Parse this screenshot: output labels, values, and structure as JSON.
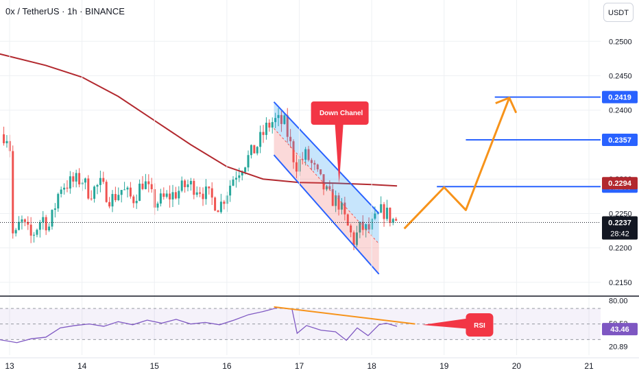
{
  "header": {
    "title": "0x / TetherUS · 1h · BINANCE",
    "currency": "USDT"
  },
  "chart_data": [
    {
      "type": "candlestick",
      "title": "0x / TetherUS · 1h · BINANCE",
      "ylim": [
        0.213,
        0.256
      ],
      "xlim": [
        13,
        21
      ],
      "x_ticks": [
        "13",
        "14",
        "15",
        "16",
        "17",
        "18",
        "19",
        "20",
        "21"
      ],
      "y_ticks": [
        "0.2500",
        "0.2450",
        "0.2400",
        "0.2300",
        "0.2250",
        "0.2200",
        "0.2150"
      ],
      "grid": true,
      "ohlc_path": [
        [
          12.95,
          0.2365
        ],
        [
          13.0,
          0.2355
        ],
        [
          13.05,
          0.2205
        ],
        [
          13.15,
          0.224
        ],
        [
          13.3,
          0.2215
        ],
        [
          13.45,
          0.2245
        ],
        [
          13.55,
          0.223
        ],
        [
          13.7,
          0.229
        ],
        [
          13.85,
          0.2295
        ],
        [
          14.0,
          0.23
        ],
        [
          14.1,
          0.228
        ],
        [
          14.25,
          0.2292
        ],
        [
          14.4,
          0.227
        ],
        [
          14.55,
          0.2285
        ],
        [
          14.7,
          0.227
        ],
        [
          14.85,
          0.2298
        ],
        [
          15.0,
          0.2265
        ],
        [
          15.15,
          0.2272
        ],
        [
          15.3,
          0.228
        ],
        [
          15.45,
          0.2292
        ],
        [
          15.6,
          0.2288
        ],
        [
          15.75,
          0.2275
        ],
        [
          15.9,
          0.226
        ],
        [
          16.0,
          0.2282
        ],
        [
          16.1,
          0.2305
        ],
        [
          16.25,
          0.2325
        ],
        [
          16.4,
          0.2345
        ],
        [
          16.55,
          0.2375
        ],
        [
          16.65,
          0.2385
        ],
        [
          16.8,
          0.238
        ],
        [
          16.95,
          0.232
        ],
        [
          17.1,
          0.2335
        ],
        [
          17.25,
          0.2305
        ],
        [
          17.4,
          0.2275
        ],
        [
          17.55,
          0.2265
        ],
        [
          17.65,
          0.2235
        ],
        [
          17.75,
          0.221
        ],
        [
          17.85,
          0.223
        ],
        [
          17.95,
          0.2225
        ],
        [
          18.05,
          0.224
        ],
        [
          18.15,
          0.2255
        ],
        [
          18.3,
          0.224
        ]
      ],
      "moving_average": {
        "color": "#b2282e",
        "points": [
          [
            12.85,
            0.2482
          ],
          [
            13.5,
            0.2465
          ],
          [
            14.0,
            0.2448
          ],
          [
            14.5,
            0.242
          ],
          [
            15.0,
            0.2385
          ],
          [
            15.5,
            0.235
          ],
          [
            16.0,
            0.2318
          ],
          [
            16.5,
            0.23
          ],
          [
            17.0,
            0.2295
          ],
          [
            17.5,
            0.2294
          ],
          [
            18.0,
            0.2292
          ],
          [
            18.35,
            0.229
          ]
        ]
      },
      "down_channel": {
        "label": "Down Chanel",
        "upper": [
          [
            16.65,
            0.2412
          ],
          [
            18.1,
            0.225
          ]
        ],
        "lower": [
          [
            16.65,
            0.2335
          ],
          [
            18.1,
            0.2162
          ]
        ]
      },
      "projection_path": [
        [
          18.45,
          0.2228
        ],
        [
          19.0,
          0.2288
        ],
        [
          19.3,
          0.2255
        ],
        [
          19.9,
          0.2418
        ]
      ],
      "levels": [
        {
          "value": 0.2419,
          "label": "0.2419",
          "color": "#2962ff"
        },
        {
          "value": 0.2357,
          "label": "0.2357",
          "color": "#2962ff"
        },
        {
          "value": 0.2289,
          "label": "0.2289",
          "color": "#2962ff"
        }
      ],
      "price_labels": {
        "ma": {
          "value": 0.2294,
          "label": "0.2294",
          "color": "#b2282e"
        },
        "last": {
          "value": 0.2237,
          "label": "0.2237",
          "countdown": "28:42",
          "color": "#131722"
        }
      }
    },
    {
      "type": "line",
      "title": "RSI",
      "ylim": [
        10,
        85
      ],
      "y_ticks": [
        "80.00",
        "50.52",
        "20.89"
      ],
      "bands": [
        30,
        70
      ],
      "series": [
        {
          "name": "RSI",
          "color": "#7e57c2",
          "points": [
            [
              12.85,
              30
            ],
            [
              13.1,
              26
            ],
            [
              13.3,
              31
            ],
            [
              13.5,
              33
            ],
            [
              13.7,
              45
            ],
            [
              13.9,
              48
            ],
            [
              14.1,
              50
            ],
            [
              14.3,
              47
            ],
            [
              14.5,
              53
            ],
            [
              14.7,
              49
            ],
            [
              14.9,
              55
            ],
            [
              15.1,
              51
            ],
            [
              15.3,
              56
            ],
            [
              15.5,
              50
            ],
            [
              15.7,
              52
            ],
            [
              15.9,
              49
            ],
            [
              16.1,
              55
            ],
            [
              16.3,
              62
            ],
            [
              16.5,
              66
            ],
            [
              16.7,
              71
            ],
            [
              16.9,
              69
            ],
            [
              16.97,
              38
            ],
            [
              17.1,
              48
            ],
            [
              17.3,
              42
            ],
            [
              17.5,
              40
            ],
            [
              17.65,
              29
            ],
            [
              17.8,
              45
            ],
            [
              17.95,
              35
            ],
            [
              18.1,
              49
            ],
            [
              18.2,
              51
            ],
            [
              18.35,
              47
            ]
          ]
        }
      ],
      "divergence_line": [
        [
          16.65,
          72
        ],
        [
          18.6,
          50
        ]
      ],
      "label": "RSI",
      "last_value": "43.46"
    }
  ]
}
